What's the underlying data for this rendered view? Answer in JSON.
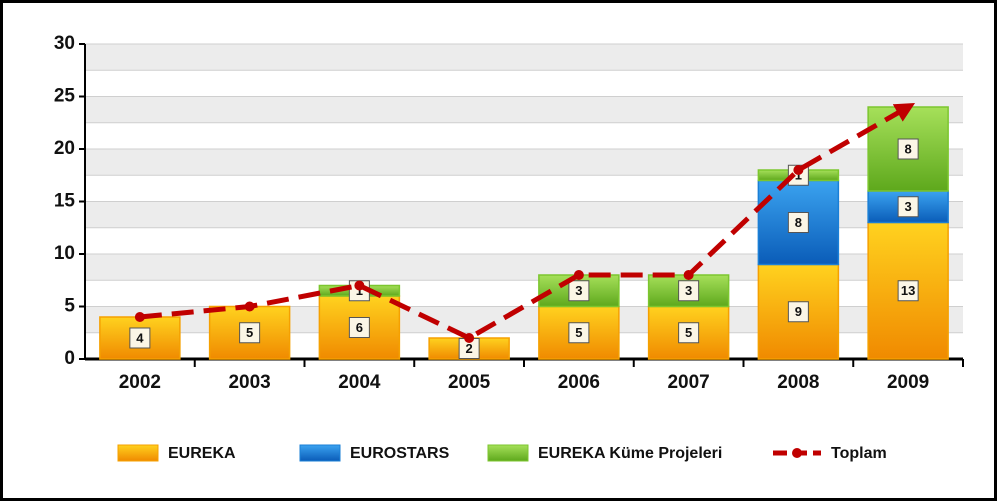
{
  "chart_data": {
    "type": "bar",
    "stacked": true,
    "categories": [
      "2002",
      "2003",
      "2004",
      "2005",
      "2006",
      "2007",
      "2008",
      "2009"
    ],
    "series": [
      {
        "name": "EUREKA",
        "color": "#f5a000",
        "values": [
          4,
          5,
          6,
          2,
          5,
          5,
          9,
          13
        ]
      },
      {
        "name": "EUROSTARS",
        "color": "#1a7fd6",
        "values": [
          null,
          null,
          null,
          null,
          null,
          null,
          8,
          3
        ]
      },
      {
        "name": "EUREKA Küme Projeleri",
        "color": "#7cc62f",
        "values": [
          null,
          null,
          1,
          null,
          3,
          3,
          1,
          8
        ]
      },
      {
        "name": "Toplam",
        "type": "line",
        "color": "#c00000",
        "values": [
          4,
          5,
          7,
          2,
          8,
          8,
          18,
          24
        ]
      }
    ],
    "ylim": [
      0,
      30
    ],
    "yticks": [
      0,
      5,
      10,
      15,
      20,
      25,
      30
    ],
    "grid": true,
    "legend": "bottom"
  }
}
